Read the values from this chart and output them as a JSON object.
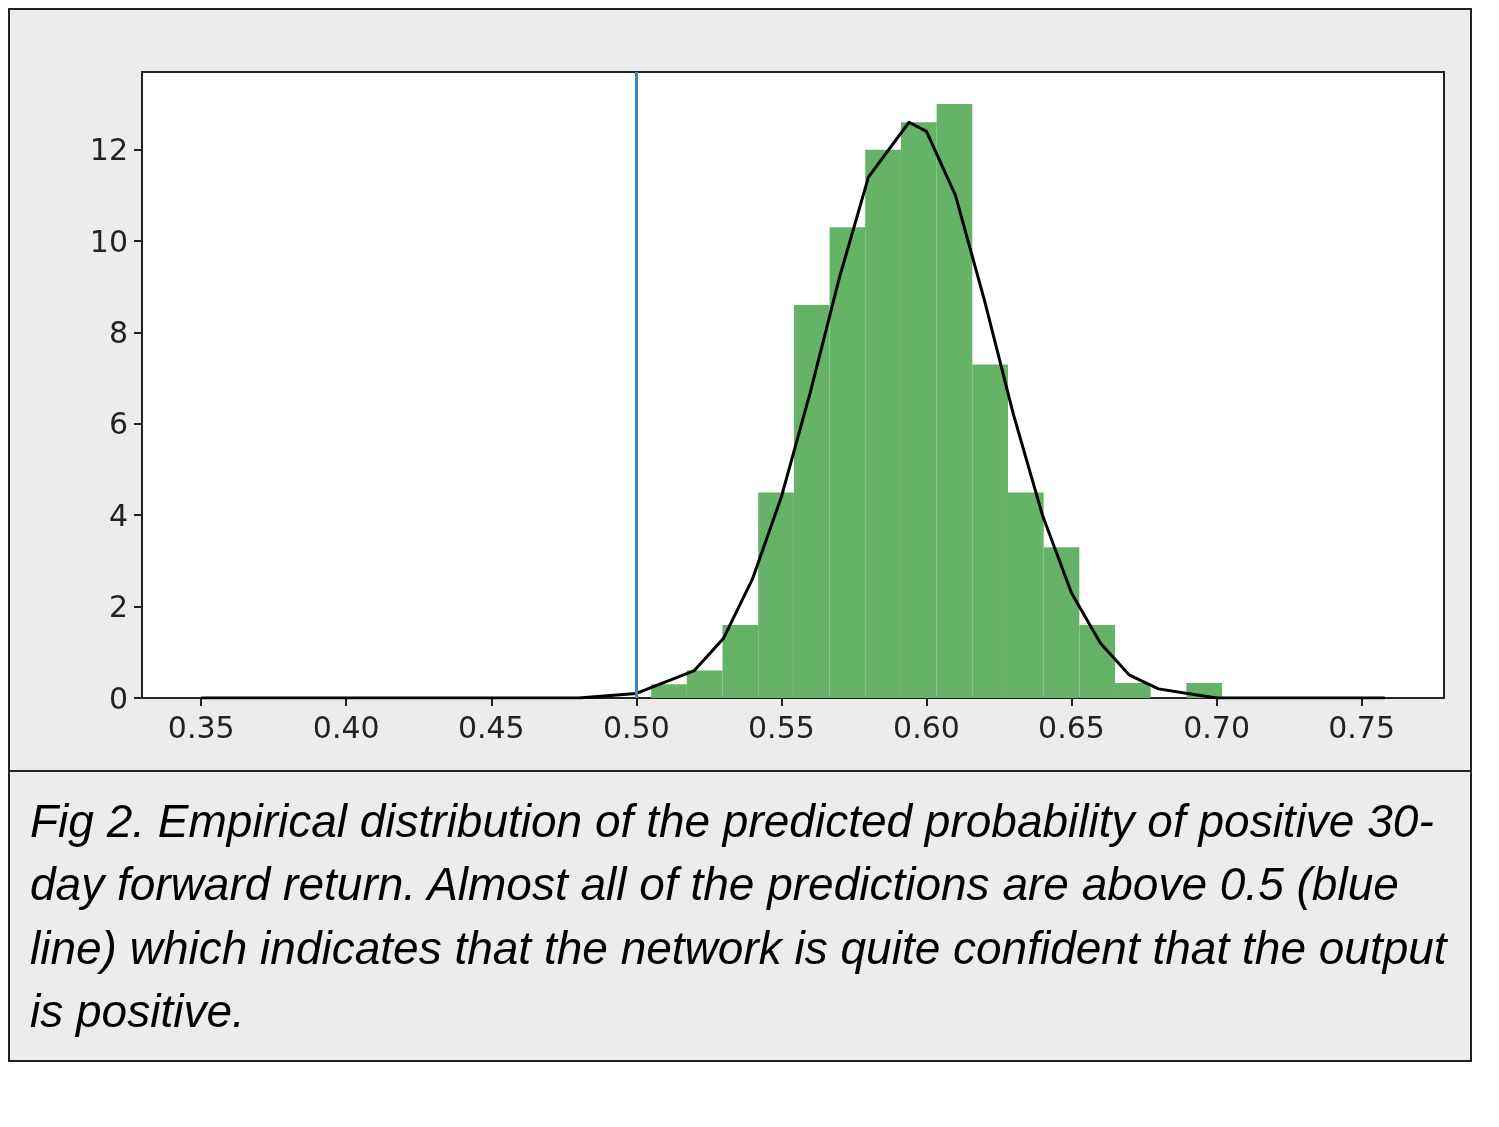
{
  "chart_data": {
    "type": "histogram",
    "series": [
      {
        "color": "#66b266",
        "bins": [
          0.5051,
          0.5174,
          0.5297,
          0.542,
          0.5543,
          0.5666,
          0.5789,
          0.5912,
          0.6035,
          0.6158,
          0.6281,
          0.6404,
          0.6527,
          0.665,
          0.6773,
          0.6896,
          0.7019
        ],
        "values": [
          0.3,
          0.6,
          1.6,
          4.5,
          8.6,
          10.3,
          12.0,
          12.6,
          13.0,
          7.3,
          4.5,
          3.3,
          1.6,
          0.33,
          0,
          0.33
        ]
      },
      {
        "type": "line",
        "color": "#000000",
        "x": [
          0.35,
          0.45,
          0.48,
          0.5,
          0.52,
          0.53,
          0.54,
          0.55,
          0.56,
          0.57,
          0.58,
          0.594,
          0.6,
          0.61,
          0.62,
          0.63,
          0.64,
          0.65,
          0.66,
          0.67,
          0.68,
          0.69,
          0.7,
          0.72,
          0.758
        ],
        "values": [
          0,
          0,
          0,
          0.1,
          0.6,
          1.3,
          2.6,
          4.4,
          6.7,
          9.2,
          11.4,
          12.6,
          12.4,
          11.0,
          8.7,
          6.2,
          4.0,
          2.3,
          1.2,
          0.5,
          0.2,
          0.1,
          0,
          0,
          0
        ]
      }
    ],
    "xlim": [
      0.3296,
      0.7784
    ],
    "xticks": [
      {
        "value": 0.35,
        "label": "0.35"
      },
      {
        "value": 0.4,
        "label": "0.40"
      },
      {
        "value": 0.45,
        "label": "0.45"
      },
      {
        "value": 0.5,
        "label": "0.50"
      },
      {
        "value": 0.55,
        "label": "0.55"
      },
      {
        "value": 0.6,
        "label": "0.60"
      },
      {
        "value": 0.65,
        "label": "0.65"
      },
      {
        "value": 0.7,
        "label": "0.70"
      },
      {
        "value": 0.75,
        "label": "0.75"
      }
    ],
    "ylim": [
      0,
      13.7
    ],
    "yticks": [
      0,
      2,
      4,
      6,
      8,
      10,
      12
    ],
    "ref_lines": [
      {
        "axis": "x",
        "value": 0.5,
        "color": "#3a86c2"
      }
    ],
    "grid": false,
    "annotations": [
      "Fig 2. Empirical distribution of the predicted probability of positive 30-day forward return. Almost all of the predictions are above 0.5 (blue line) which indicates that the network is quite confident that the output is positive."
    ]
  }
}
